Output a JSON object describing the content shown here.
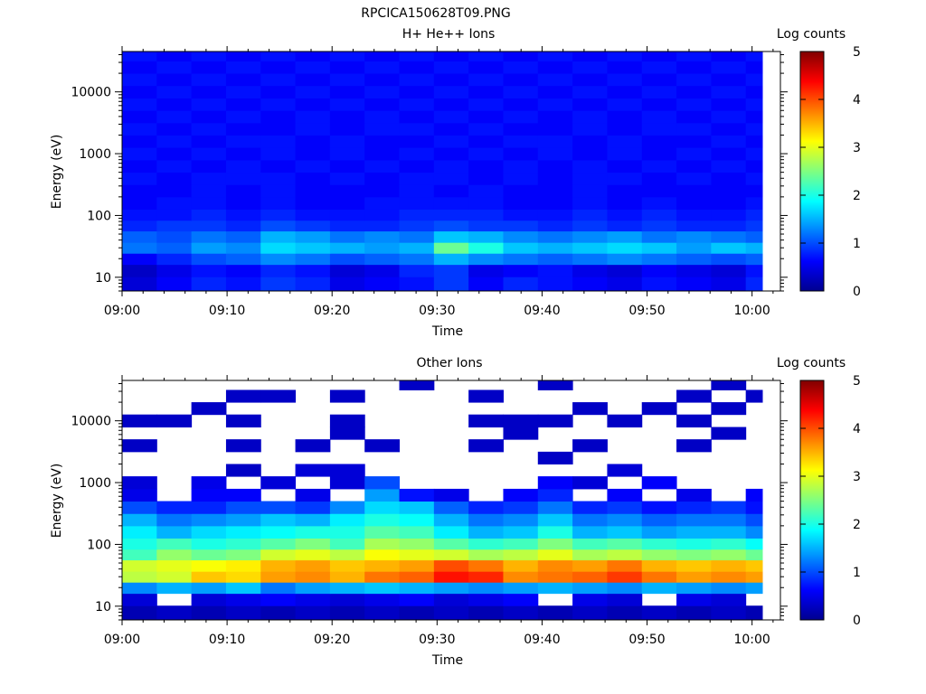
{
  "figure": {
    "title": "RPCICA150628T09.PNG"
  },
  "chart_data": [
    {
      "type": "heatmap",
      "title": "H+ He++ Ions",
      "xlabel": "Time",
      "ylabel": "Energy (eV)",
      "y_scale": "log",
      "x_ticks": [
        "09:00",
        "09:10",
        "09:20",
        "09:30",
        "09:40",
        "09:50",
        "10:00"
      ],
      "y_ticks": [
        "10",
        "100",
        "1000",
        "10000"
      ],
      "colorbar": {
        "label": "Log counts",
        "ticks": [
          "0",
          "1",
          "2",
          "3",
          "4",
          "5"
        ],
        "range": [
          0,
          5
        ]
      },
      "time_columns_minutes": [
        0,
        3.3,
        6.6,
        9.9,
        13.2,
        16.5,
        19.8,
        23.1,
        26.4,
        29.7,
        33.0,
        36.3,
        39.6,
        42.9,
        46.2,
        49.5,
        52.8,
        56.1,
        59.4,
        62.7
      ],
      "energy_bins_eV": [
        8,
        13,
        20,
        30,
        45,
        70,
        100,
        160,
        250,
        400,
        630,
        1000,
        1600,
        2500,
        4000,
        6300,
        10000,
        16000,
        25000,
        40000
      ],
      "values_log_counts": [
        [
          0.4,
          0.6,
          0.8,
          0.7,
          0.9,
          0.8,
          0.5,
          0.6,
          0.7,
          0.9,
          0.6,
          0.8,
          0.7,
          0.6,
          0.5,
          0.7,
          0.6,
          0.5,
          0.8,
          0.9
        ],
        [
          0.3,
          0.5,
          0.7,
          0.6,
          0.8,
          0.7,
          0.4,
          0.5,
          0.8,
          0.9,
          0.5,
          0.6,
          0.7,
          0.5,
          0.4,
          0.6,
          0.5,
          0.4,
          0.7,
          0.8
        ],
        [
          0.6,
          0.8,
          1.0,
          1.1,
          1.3,
          1.2,
          1.0,
          1.1,
          1.2,
          1.5,
          1.3,
          1.2,
          1.1,
          1.2,
          1.3,
          1.2,
          1.1,
          1.0,
          1.1,
          1.2
        ],
        [
          1.2,
          1.1,
          1.4,
          1.3,
          1.7,
          1.6,
          1.5,
          1.4,
          1.5,
          2.4,
          2.0,
          1.6,
          1.5,
          1.6,
          1.7,
          1.6,
          1.4,
          1.6,
          1.5,
          1.4
        ],
        [
          1.1,
          1.0,
          1.2,
          1.1,
          1.5,
          1.4,
          1.2,
          1.3,
          1.2,
          1.6,
          1.5,
          1.3,
          1.2,
          1.3,
          1.4,
          1.2,
          1.3,
          1.2,
          1.1,
          1.2
        ],
        [
          0.8,
          0.9,
          0.9,
          0.8,
          1.0,
          0.9,
          0.8,
          0.8,
          0.9,
          1.0,
          0.9,
          0.9,
          0.8,
          0.9,
          0.8,
          0.9,
          0.8,
          0.8,
          0.9,
          0.8
        ],
        [
          0.7,
          0.7,
          0.8,
          0.7,
          0.8,
          0.7,
          0.7,
          0.7,
          0.8,
          0.8,
          0.8,
          0.7,
          0.7,
          0.8,
          0.7,
          0.8,
          0.7,
          0.7,
          0.8,
          0.7
        ],
        [
          0.6,
          0.7,
          0.7,
          0.6,
          0.7,
          0.6,
          0.6,
          0.7,
          0.7,
          0.7,
          0.7,
          0.6,
          0.6,
          0.7,
          0.6,
          0.7,
          0.6,
          0.6,
          0.7,
          0.6
        ],
        [
          0.6,
          0.6,
          0.7,
          0.6,
          0.7,
          0.6,
          0.6,
          0.6,
          0.7,
          0.6,
          0.7,
          0.6,
          0.6,
          0.7,
          0.6,
          0.6,
          0.6,
          0.6,
          0.6,
          0.6
        ],
        [
          0.7,
          0.6,
          0.7,
          0.7,
          0.7,
          0.6,
          0.7,
          0.6,
          0.7,
          0.7,
          0.6,
          0.7,
          0.6,
          0.7,
          0.7,
          0.6,
          0.7,
          0.6,
          0.7,
          0.6
        ],
        [
          0.6,
          0.7,
          0.6,
          0.7,
          0.6,
          0.7,
          0.6,
          0.7,
          0.6,
          0.7,
          0.6,
          0.7,
          0.6,
          0.7,
          0.6,
          0.7,
          0.6,
          0.7,
          0.6,
          0.7
        ],
        [
          0.7,
          0.6,
          0.7,
          0.6,
          0.7,
          0.6,
          0.7,
          0.6,
          0.7,
          0.6,
          0.7,
          0.6,
          0.7,
          0.6,
          0.7,
          0.6,
          0.7,
          0.6,
          0.7,
          0.6
        ],
        [
          0.6,
          0.7,
          0.6,
          0.7,
          0.7,
          0.6,
          0.7,
          0.6,
          0.6,
          0.7,
          0.6,
          0.7,
          0.7,
          0.6,
          0.7,
          0.6,
          0.6,
          0.7,
          0.6,
          0.7
        ],
        [
          0.7,
          0.6,
          0.7,
          0.6,
          0.6,
          0.7,
          0.6,
          0.7,
          0.7,
          0.6,
          0.7,
          0.6,
          0.6,
          0.7,
          0.6,
          0.7,
          0.7,
          0.6,
          0.7,
          0.6
        ],
        [
          0.6,
          0.7,
          0.6,
          0.7,
          0.6,
          0.7,
          0.6,
          0.7,
          0.6,
          0.7,
          0.6,
          0.7,
          0.6,
          0.7,
          0.6,
          0.7,
          0.6,
          0.7,
          0.6,
          0.7
        ],
        [
          0.7,
          0.6,
          0.7,
          0.6,
          0.7,
          0.6,
          0.7,
          0.6,
          0.7,
          0.6,
          0.7,
          0.6,
          0.7,
          0.6,
          0.7,
          0.6,
          0.7,
          0.6,
          0.7,
          0.6
        ],
        [
          0.6,
          0.7,
          0.6,
          0.7,
          0.6,
          0.7,
          0.6,
          0.7,
          0.6,
          0.7,
          0.6,
          0.7,
          0.6,
          0.7,
          0.6,
          0.7,
          0.6,
          0.7,
          0.6,
          0.7
        ],
        [
          0.7,
          0.6,
          0.7,
          0.6,
          0.7,
          0.6,
          0.7,
          0.6,
          0.7,
          0.6,
          0.7,
          0.6,
          0.7,
          0.6,
          0.7,
          0.6,
          0.7,
          0.6,
          0.7,
          0.6
        ],
        [
          0.6,
          0.7,
          0.6,
          0.7,
          0.6,
          0.7,
          0.6,
          0.7,
          0.6,
          0.7,
          0.6,
          0.7,
          0.6,
          0.7,
          0.6,
          0.7,
          0.6,
          0.7,
          0.6,
          0.7
        ],
        [
          0.7,
          0.6,
          0.7,
          0.6,
          0.7,
          0.6,
          0.7,
          0.6,
          0.7,
          0.6,
          0.7,
          0.6,
          0.7,
          0.6,
          0.7,
          0.6,
          0.7,
          0.6,
          0.7,
          0.6
        ]
      ]
    },
    {
      "type": "heatmap",
      "title": "Other Ions",
      "xlabel": "Time",
      "ylabel": "Energy (eV)",
      "y_scale": "log",
      "x_ticks": [
        "09:00",
        "09:10",
        "09:20",
        "09:30",
        "09:40",
        "09:50",
        "10:00"
      ],
      "y_ticks": [
        "10",
        "100",
        "1000",
        "10000"
      ],
      "colorbar": {
        "label": "Log counts",
        "ticks": [
          "0",
          "1",
          "2",
          "3",
          "4",
          "5"
        ],
        "range": [
          0,
          5
        ]
      },
      "time_columns_minutes": [
        0,
        3.3,
        6.6,
        9.9,
        13.2,
        16.5,
        19.8,
        23.1,
        26.4,
        29.7,
        33.0,
        36.3,
        39.6,
        42.9,
        46.2,
        49.5,
        52.8,
        56.1,
        59.4,
        62.7
      ],
      "energy_bins_eV": [
        8,
        13,
        20,
        30,
        45,
        70,
        100,
        160,
        250,
        400,
        630,
        1000,
        1600,
        2500,
        4000,
        6300,
        10000,
        16000,
        25000,
        40000
      ],
      "values_log_counts": [
        [
          0.2,
          0.3,
          0.2,
          0.3,
          0.2,
          0.3,
          0.2,
          0.3,
          0.2,
          0.3,
          0.2,
          0.3,
          0.2,
          0.3,
          0.2,
          0.3,
          0.2,
          0.3,
          0.2,
          0.3
        ],
        [
          0.4,
          0.0,
          0.4,
          0.5,
          0.6,
          0.5,
          0.4,
          0.5,
          0.6,
          0.4,
          0.5,
          0.6,
          0.0,
          0.5,
          0.4,
          0.0,
          0.5,
          0.4,
          0.0,
          0.5
        ],
        [
          1.3,
          1.5,
          1.4,
          1.6,
          1.2,
          1.4,
          1.5,
          1.6,
          1.5,
          1.4,
          1.3,
          1.4,
          1.5,
          1.4,
          1.3,
          1.5,
          1.4,
          1.3,
          1.4,
          1.2
        ],
        [
          2.8,
          2.9,
          3.4,
          3.3,
          3.6,
          3.7,
          3.5,
          3.8,
          3.9,
          4.3,
          4.2,
          3.7,
          3.8,
          3.9,
          4.1,
          3.8,
          3.6,
          3.7,
          3.6,
          3.5
        ],
        [
          2.9,
          3.0,
          3.1,
          3.2,
          3.5,
          3.6,
          3.4,
          3.5,
          3.6,
          4.0,
          3.8,
          3.5,
          3.7,
          3.6,
          3.8,
          3.5,
          3.4,
          3.5,
          3.4,
          3.3
        ],
        [
          2.2,
          2.6,
          2.4,
          2.5,
          2.9,
          3.0,
          2.8,
          3.1,
          3.0,
          2.9,
          2.7,
          2.8,
          3.0,
          2.7,
          2.8,
          2.6,
          2.5,
          2.6,
          2.4,
          2.3
        ],
        [
          2.0,
          2.2,
          2.0,
          2.1,
          2.3,
          2.5,
          2.2,
          2.7,
          2.6,
          2.3,
          2.1,
          2.2,
          2.5,
          2.2,
          2.3,
          2.1,
          2.0,
          2.1,
          1.9,
          1.8
        ],
        [
          1.8,
          1.5,
          1.7,
          1.8,
          1.9,
          2.0,
          2.0,
          2.3,
          2.2,
          1.8,
          1.5,
          1.6,
          2.0,
          1.5,
          1.6,
          1.4,
          1.5,
          1.5,
          1.3,
          1.2
        ],
        [
          1.5,
          1.2,
          1.3,
          1.4,
          1.6,
          1.5,
          1.8,
          2.0,
          1.9,
          1.5,
          1.2,
          1.3,
          1.6,
          1.2,
          1.3,
          1.1,
          1.2,
          1.2,
          1.0,
          0.9
        ],
        [
          1.0,
          0.8,
          0.8,
          1.0,
          1.0,
          0.9,
          1.3,
          1.7,
          1.6,
          1.1,
          0.8,
          0.9,
          1.2,
          0.8,
          0.9,
          0.7,
          0.8,
          0.9,
          0.7,
          0.6
        ],
        [
          0.5,
          0.0,
          0.6,
          0.6,
          0.0,
          0.5,
          0.0,
          1.4,
          0.7,
          0.5,
          0.0,
          0.6,
          0.8,
          0.0,
          0.6,
          0.0,
          0.5,
          0.0,
          0.6,
          0.0
        ],
        [
          0.4,
          0.0,
          0.5,
          0.0,
          0.4,
          0.0,
          0.4,
          1.0,
          0.0,
          0.0,
          0.0,
          0.0,
          0.6,
          0.4,
          0.0,
          0.6,
          0.0,
          0.0,
          0.0,
          0.0
        ],
        [
          0.0,
          0.0,
          0.0,
          0.3,
          0.0,
          0.4,
          0.4,
          0.0,
          0.0,
          0.0,
          0.0,
          0.0,
          0.0,
          0.0,
          0.4,
          0.0,
          0.0,
          0.0,
          0.0,
          0.0
        ],
        [
          0.0,
          0.0,
          0.0,
          0.0,
          0.0,
          0.0,
          0.0,
          0.0,
          0.0,
          0.0,
          0.0,
          0.0,
          0.3,
          0.0,
          0.0,
          0.0,
          0.0,
          0.0,
          0.0,
          0.0
        ],
        [
          0.3,
          0.0,
          0.0,
          0.3,
          0.0,
          0.3,
          0.0,
          0.3,
          0.0,
          0.0,
          0.3,
          0.0,
          0.0,
          0.3,
          0.0,
          0.0,
          0.3,
          0.0,
          0.0,
          0.0
        ],
        [
          0.0,
          0.0,
          0.0,
          0.0,
          0.0,
          0.0,
          0.3,
          0.0,
          0.0,
          0.0,
          0.0,
          0.3,
          0.0,
          0.0,
          0.0,
          0.0,
          0.0,
          0.3,
          0.0,
          0.3
        ],
        [
          0.3,
          0.3,
          0.0,
          0.3,
          0.0,
          0.0,
          0.3,
          0.0,
          0.0,
          0.0,
          0.3,
          0.3,
          0.3,
          0.0,
          0.3,
          0.0,
          0.3,
          0.0,
          0.0,
          0.3
        ],
        [
          0.0,
          0.0,
          0.3,
          0.0,
          0.0,
          0.0,
          0.0,
          0.0,
          0.0,
          0.0,
          0.0,
          0.0,
          0.0,
          0.3,
          0.0,
          0.3,
          0.0,
          0.3,
          0.0,
          0.0
        ],
        [
          0.0,
          0.0,
          0.0,
          0.3,
          0.3,
          0.0,
          0.3,
          0.0,
          0.0,
          0.0,
          0.3,
          0.0,
          0.0,
          0.0,
          0.0,
          0.0,
          0.3,
          0.0,
          0.3,
          0.3
        ],
        [
          0.0,
          0.0,
          0.0,
          0.0,
          0.0,
          0.0,
          0.0,
          0.0,
          0.3,
          0.0,
          0.0,
          0.0,
          0.3,
          0.0,
          0.0,
          0.0,
          0.0,
          0.3,
          0.0,
          0.0
        ]
      ]
    }
  ]
}
